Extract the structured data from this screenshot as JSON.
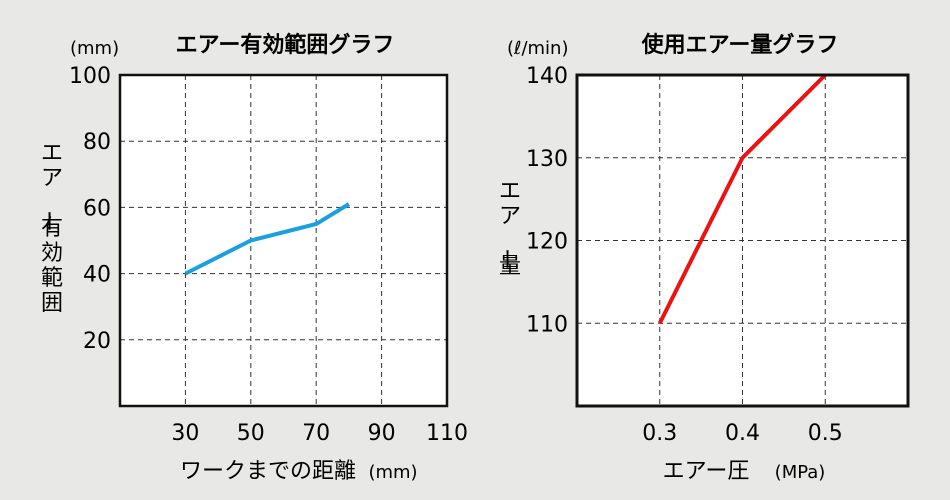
{
  "chart_data": [
    {
      "type": "line",
      "title": "エアー有効範囲グラフ",
      "y_unit": "(mm)",
      "ylabel": "エアー有効範囲",
      "xlabel": "ワークまでの距離",
      "x_unit": "(mm)",
      "x_ticks": [
        "30",
        "50",
        "70",
        "90",
        "110"
      ],
      "y_ticks": [
        "20",
        "40",
        "60",
        "80",
        "100"
      ],
      "xlim": [
        10,
        110
      ],
      "ylim": [
        0,
        100
      ],
      "grid": true,
      "series": [
        {
          "color": "#1aa0e0",
          "x": [
            30,
            50,
            70,
            80
          ],
          "y": [
            40,
            50,
            55,
            61
          ]
        }
      ]
    },
    {
      "type": "line",
      "title": "使用エアー量グラフ",
      "y_unit": "(ℓ/min)",
      "ylabel": "エアー量",
      "xlabel": "エアー圧",
      "x_unit": "(MPa)",
      "x_ticks": [
        "0.3",
        "0.4",
        "0.5"
      ],
      "y_ticks": [
        "110",
        "120",
        "130",
        "140"
      ],
      "xlim": [
        0.2,
        0.6
      ],
      "ylim": [
        100,
        140
      ],
      "grid": true,
      "series": [
        {
          "color": "#ee1111",
          "x": [
            0.3,
            0.4,
            0.5
          ],
          "y": [
            110,
            130,
            140
          ]
        }
      ]
    }
  ]
}
